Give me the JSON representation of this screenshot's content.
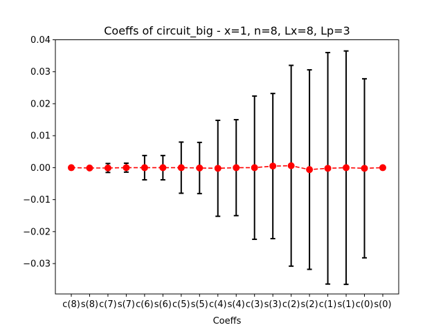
{
  "chart_data": {
    "type": "scatter",
    "title": "Coeffs of circuit_big - x=1, n=8, Lx=8, Lp=3",
    "xlabel": "Coeffs",
    "ylabel": "",
    "categories": [
      "c(8)",
      "s(8)",
      "c(7)",
      "s(7)",
      "c(6)",
      "s(6)",
      "c(5)",
      "s(5)",
      "c(4)",
      "s(4)",
      "c(3)",
      "s(3)",
      "c(2)",
      "s(2)",
      "c(1)",
      "s(1)",
      "c(0)",
      "s(0)"
    ],
    "series": [
      {
        "values": [
          0.0,
          -0.0001,
          -0.0001,
          0.0,
          0.0,
          0.0,
          0.0,
          -0.0001,
          -0.0002,
          0.0,
          0.0,
          0.0005,
          0.0006,
          -0.0006,
          -0.0002,
          0.0,
          -0.0002,
          0.0
        ],
        "error": [
          0.0,
          0.0,
          0.0014,
          0.0014,
          0.0038,
          0.0038,
          0.008,
          0.008,
          0.015,
          0.015,
          0.0224,
          0.0227,
          0.0314,
          0.0312,
          0.0362,
          0.0365,
          0.028,
          0.0
        ],
        "color": "#ff0000",
        "error_color": "#000000",
        "line_style": "dashed",
        "marker": "circle"
      }
    ],
    "ylim": [
      -0.0395,
      0.04
    ],
    "yticks": [
      0.04,
      0.03,
      0.02,
      0.01,
      0.0,
      -0.01,
      -0.02,
      -0.03
    ],
    "ytick_labels": [
      "0.04",
      "0.03",
      "0.02",
      "0.01",
      "0.00",
      "−0.01",
      "−0.02",
      "−0.03"
    ],
    "grid": false,
    "legend": "none"
  }
}
